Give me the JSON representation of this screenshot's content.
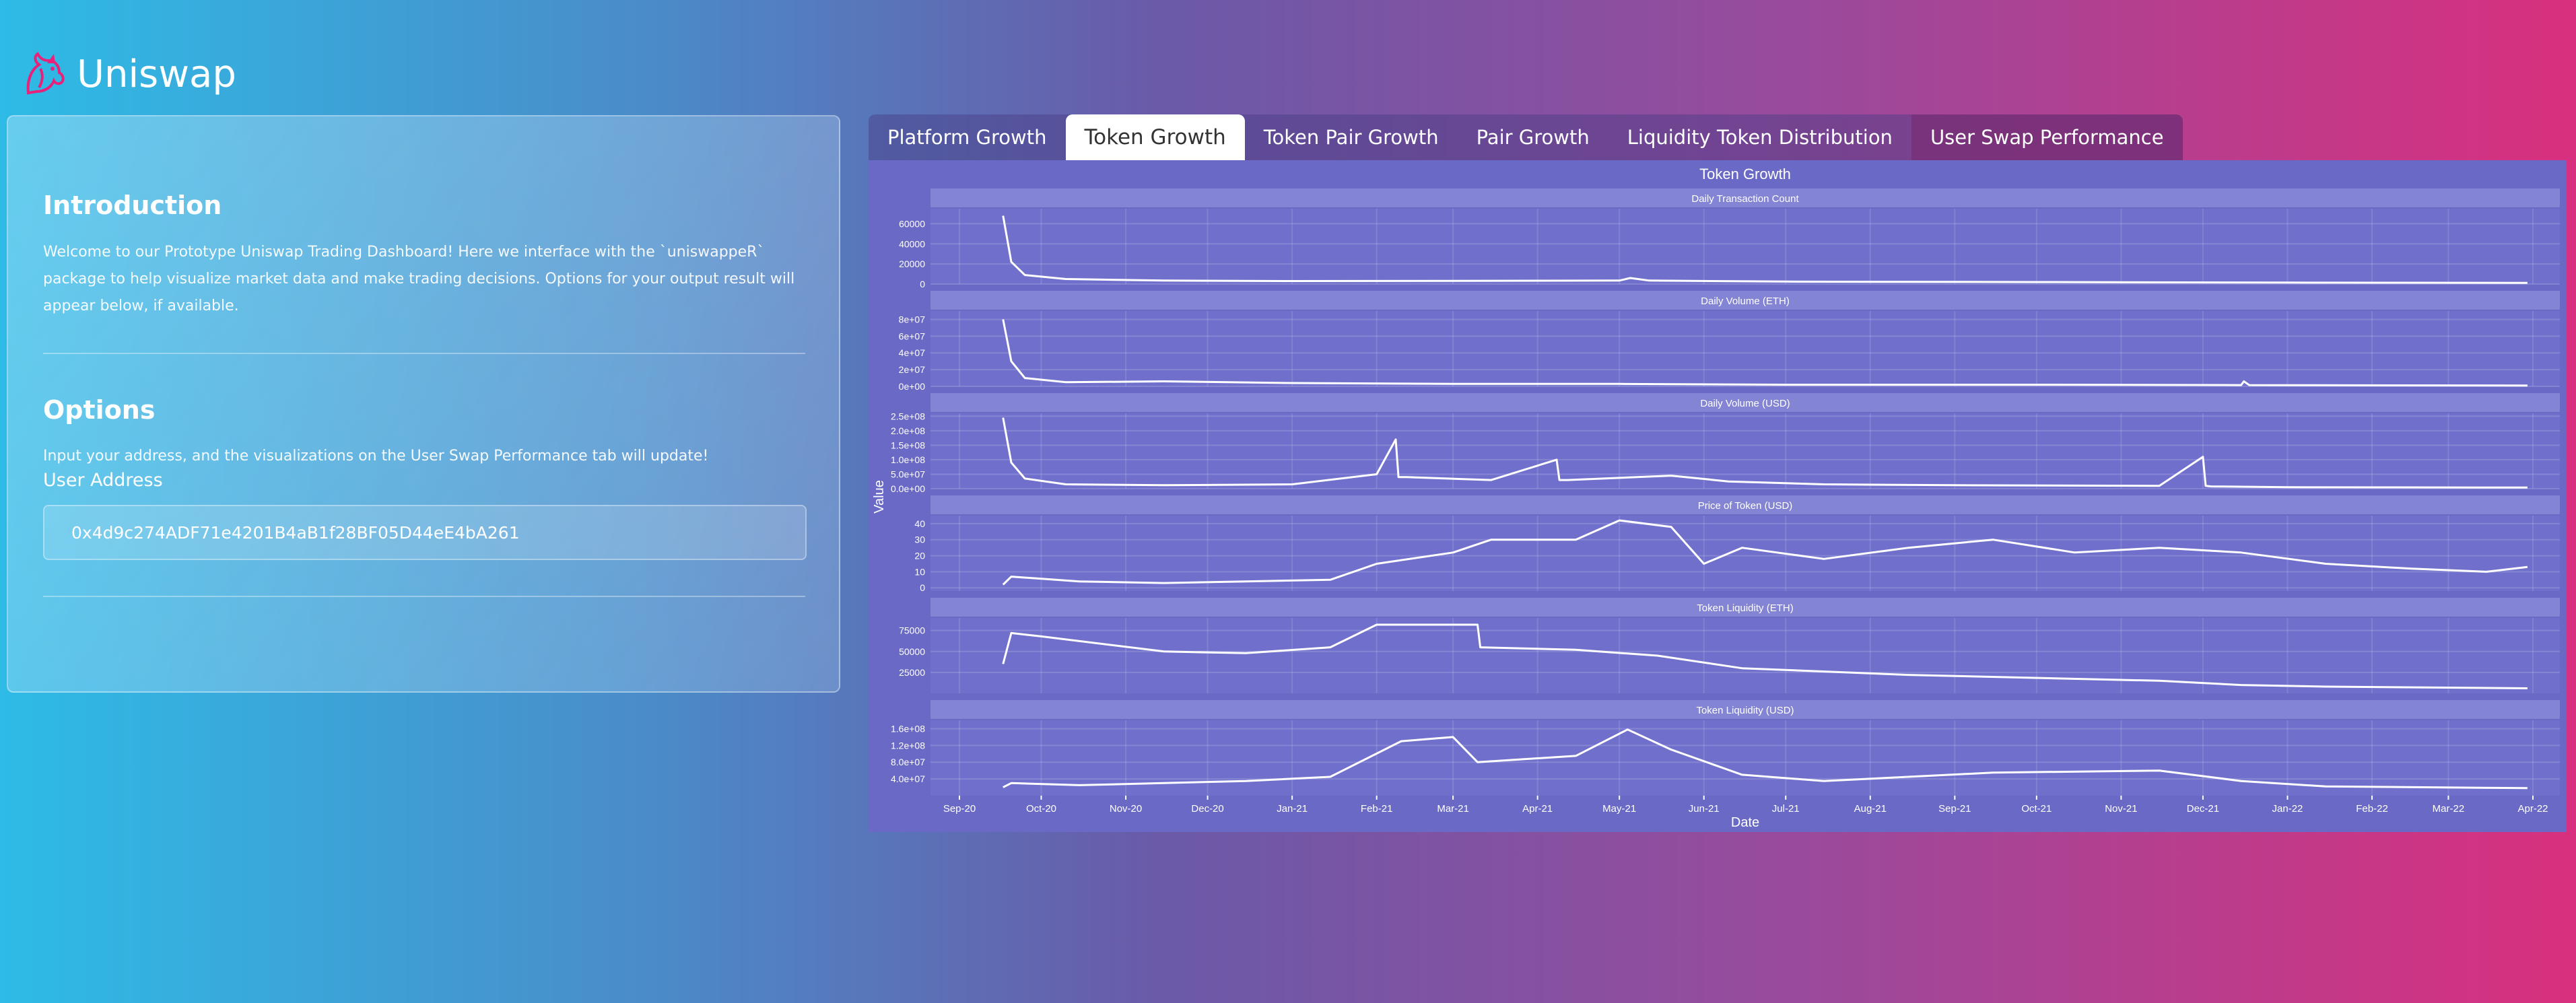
{
  "app": {
    "brand": "Uniswap"
  },
  "sidebar": {
    "intro_title": "Introduction",
    "intro_text": "Welcome to our Prototype Uniswap Trading Dashboard! Here we interface with the `uniswappeR` package to help visualize market data and make trading decisions. Options for your output result will appear below, if available.",
    "options_title": "Options",
    "options_text": "Input your address, and the visualizations on the User Swap Performance tab will update!",
    "address_label": "User Address",
    "address_value": "0x4d9c274ADF71e4201B4aB1f28BF05D44eE4bA261"
  },
  "tabs": [
    {
      "label": "Platform Growth",
      "active": false
    },
    {
      "label": "Token Growth",
      "active": true
    },
    {
      "label": "Token Pair Growth",
      "active": false
    },
    {
      "label": "Pair Growth",
      "active": false
    },
    {
      "label": "Liquidity Token Distribution",
      "active": false
    },
    {
      "label": "User Swap Performance",
      "active": false
    }
  ],
  "colors": {
    "chart_bg": "#6a6ac6",
    "panel_bg": "#7070cc",
    "strip": "#8484d4",
    "line": "#ffffff"
  },
  "chart_data": {
    "type": "line",
    "title": "Token Growth",
    "xlabel": "Date",
    "ylabel": "Value",
    "x_range": [
      "2020-09-01",
      "2022-04-01"
    ],
    "x_ticks": [
      "Sep-20",
      "Oct-20",
      "Nov-20",
      "Dec-20",
      "Jan-21",
      "Feb-21",
      "Mar-21",
      "Apr-21",
      "May-21",
      "Jun-21",
      "Jul-21",
      "Aug-21",
      "Sep-21",
      "Oct-21",
      "Nov-21",
      "Dec-21",
      "Jan-22",
      "Feb-22",
      "Mar-22",
      "Apr-22"
    ],
    "panels": [
      {
        "title": "Daily Transaction Count",
        "ylim": [
          0,
          75000
        ],
        "yticks": [
          0,
          20000,
          40000,
          60000
        ],
        "ytick_labels": [
          "0",
          "20000",
          "40000",
          "60000"
        ],
        "x": [
          "2020-09-17",
          "2020-09-20",
          "2020-09-25",
          "2020-10-10",
          "2020-11-15",
          "2021-01-01",
          "2021-03-01",
          "2021-05-01",
          "2021-05-05",
          "2021-05-12",
          "2021-07-01",
          "2021-10-01",
          "2022-01-01",
          "2022-03-30"
        ],
        "y": [
          68000,
          22000,
          9000,
          5000,
          3500,
          3000,
          3200,
          3500,
          6000,
          3500,
          2500,
          2000,
          1500,
          1200
        ]
      },
      {
        "title": "Daily Volume (ETH)",
        "ylim": [
          0,
          90000000
        ],
        "yticks": [
          0,
          20000000,
          40000000,
          60000000,
          80000000
        ],
        "ytick_labels": [
          "0e+00",
          "2e+07",
          "4e+07",
          "6e+07",
          "8e+07"
        ],
        "x": [
          "2020-09-17",
          "2020-09-20",
          "2020-09-25",
          "2020-10-10",
          "2020-11-15",
          "2021-01-01",
          "2021-03-01",
          "2021-05-01",
          "2021-07-01",
          "2021-10-01",
          "2021-12-15",
          "2021-12-16",
          "2021-12-18",
          "2022-03-30"
        ],
        "y": [
          80000000,
          30000000,
          10000000,
          5000000,
          6000000,
          4000000,
          3000000,
          3000000,
          2000000,
          2000000,
          1500000,
          6000000,
          1500000,
          1000000
        ]
      },
      {
        "title": "Daily Volume (USD)",
        "ylim": [
          0,
          260000000
        ],
        "yticks": [
          0,
          50000000,
          100000000,
          150000000,
          200000000,
          250000000
        ],
        "ytick_labels": [
          "0.0e+00",
          "5.0e+07",
          "1.0e+08",
          "1.5e+08",
          "2.0e+08",
          "2.5e+08"
        ],
        "x": [
          "2020-09-17",
          "2020-09-20",
          "2020-09-25",
          "2020-10-10",
          "2020-11-15",
          "2021-01-01",
          "2021-02-01",
          "2021-02-08",
          "2021-02-09",
          "2021-02-12",
          "2021-03-15",
          "2021-04-08",
          "2021-04-09",
          "2021-04-12",
          "2021-05-20",
          "2021-06-10",
          "2021-07-15",
          "2021-09-01",
          "2021-11-15",
          "2021-12-01",
          "2021-12-02",
          "2021-12-04",
          "2022-01-01",
          "2022-03-30"
        ],
        "y": [
          245000000,
          90000000,
          35000000,
          15000000,
          12000000,
          15000000,
          50000000,
          170000000,
          40000000,
          40000000,
          30000000,
          100000000,
          30000000,
          30000000,
          45000000,
          25000000,
          15000000,
          12000000,
          10000000,
          110000000,
          10000000,
          8000000,
          5000000,
          4000000
        ]
      },
      {
        "title": "Price of Token (USD)",
        "ylim": [
          -2,
          45
        ],
        "yticks": [
          0,
          10,
          20,
          30,
          40
        ],
        "ytick_labels": [
          "0",
          "10",
          "20",
          "30",
          "40"
        ],
        "x": [
          "2020-09-17",
          "2020-09-20",
          "2020-10-15",
          "2020-11-15",
          "2020-12-15",
          "2021-01-15",
          "2021-02-01",
          "2021-03-01",
          "2021-03-15",
          "2021-04-15",
          "2021-05-01",
          "2021-05-20",
          "2021-06-01",
          "2021-06-15",
          "2021-07-15",
          "2021-08-15",
          "2021-09-15",
          "2021-10-15",
          "2021-11-15",
          "2021-12-15",
          "2022-01-15",
          "2022-02-15",
          "2022-03-15",
          "2022-03-30"
        ],
        "y": [
          2,
          7,
          4,
          3,
          4,
          5,
          15,
          22,
          30,
          30,
          42,
          38,
          15,
          25,
          18,
          25,
          30,
          22,
          25,
          22,
          15,
          12,
          10,
          13
        ]
      },
      {
        "title": "Token Liquidity (ETH)",
        "ylim": [
          0,
          90000
        ],
        "yticks": [
          25000,
          50000,
          75000
        ],
        "ytick_labels": [
          "25000",
          "50000",
          "75000"
        ],
        "x": [
          "2020-09-17",
          "2020-09-20",
          "2020-10-01",
          "2020-11-15",
          "2020-12-15",
          "2021-01-15",
          "2021-02-01",
          "2021-03-10",
          "2021-03-11",
          "2021-04-15",
          "2021-05-15",
          "2021-06-15",
          "2021-08-15",
          "2021-11-15",
          "2021-12-15",
          "2022-01-15",
          "2022-03-30"
        ],
        "y": [
          35000,
          72000,
          68000,
          50000,
          48000,
          55000,
          82000,
          82000,
          55000,
          52000,
          45000,
          30000,
          22000,
          15000,
          10000,
          8000,
          6000
        ]
      },
      {
        "title": "Token Liquidity (USD)",
        "ylim": [
          0,
          180000000
        ],
        "yticks": [
          40000000,
          80000000,
          120000000,
          160000000
        ],
        "ytick_labels": [
          "4.0e+07",
          "8.0e+07",
          "1.2e+08",
          "1.6e+08"
        ],
        "x": [
          "2020-09-17",
          "2020-09-20",
          "2020-10-15",
          "2020-11-15",
          "2020-12-15",
          "2021-01-15",
          "2021-02-10",
          "2021-03-01",
          "2021-03-10",
          "2021-04-15",
          "2021-05-04",
          "2021-05-20",
          "2021-06-15",
          "2021-07-15",
          "2021-09-15",
          "2021-11-15",
          "2021-12-15",
          "2022-01-15",
          "2022-03-30"
        ],
        "y": [
          20000000,
          30000000,
          25000000,
          30000000,
          35000000,
          45000000,
          130000000,
          140000000,
          80000000,
          95000000,
          158000000,
          110000000,
          50000000,
          35000000,
          55000000,
          60000000,
          35000000,
          22000000,
          18000000
        ]
      }
    ]
  }
}
